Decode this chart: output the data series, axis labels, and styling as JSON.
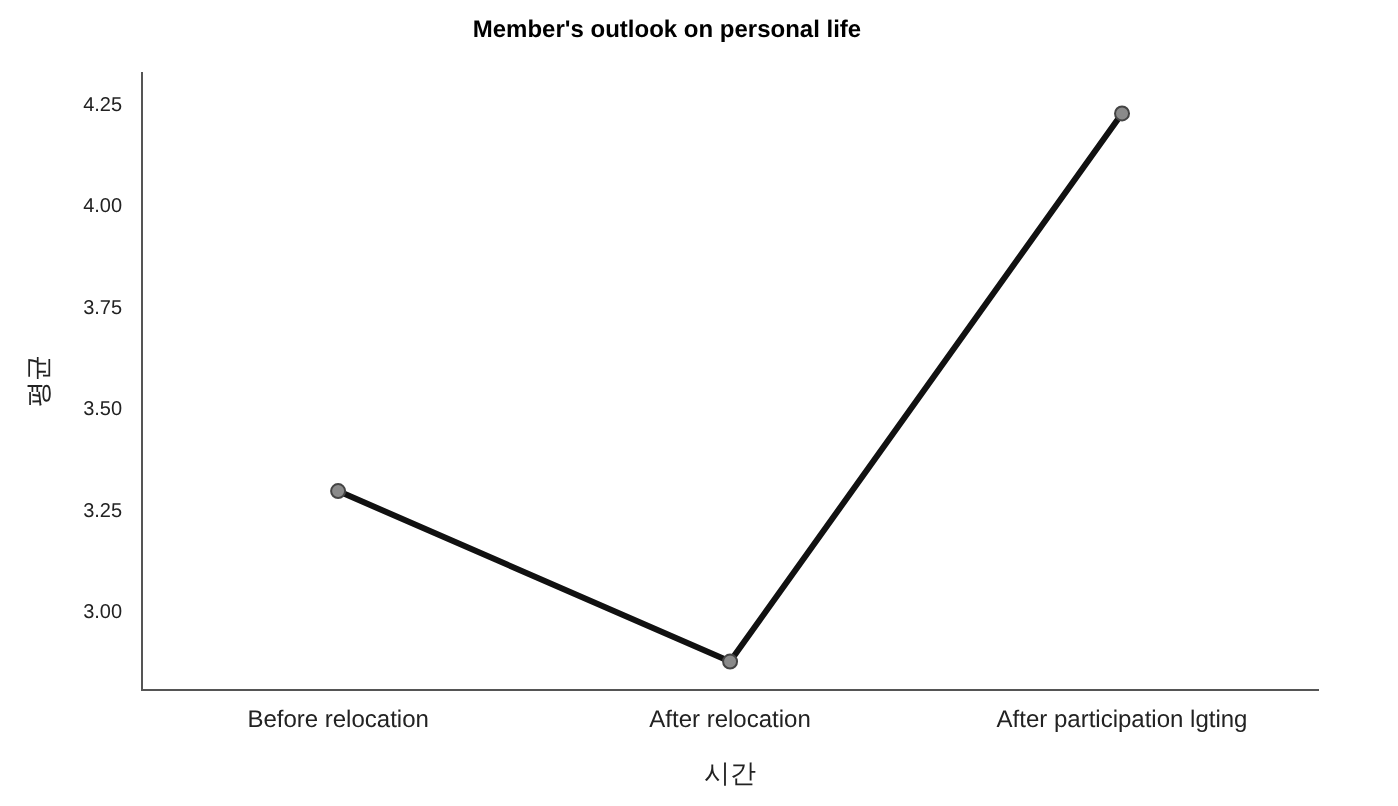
{
  "chart_data": {
    "type": "line",
    "title": "Member's outlook on personal life",
    "xlabel": "시간",
    "ylabel": "평균",
    "categories": [
      "Before relocation",
      "After relocation",
      "After participation lgting"
    ],
    "series": [
      {
        "color": "#111111",
        "values": [
          3.3,
          2.88,
          4.23
        ]
      }
    ],
    "ylim": [
      2.81,
      4.33
    ],
    "yticks": [
      {
        "value": 3.0,
        "label": "3.00"
      },
      {
        "value": 3.25,
        "label": "3.25"
      },
      {
        "value": 3.5,
        "label": "3.50"
      },
      {
        "value": 3.75,
        "label": "3.75"
      },
      {
        "value": 4.0,
        "label": "4.00"
      },
      {
        "value": 4.25,
        "label": "4.25"
      }
    ],
    "grid": false,
    "legend": false,
    "marker": "circle",
    "line_style": "solid"
  }
}
